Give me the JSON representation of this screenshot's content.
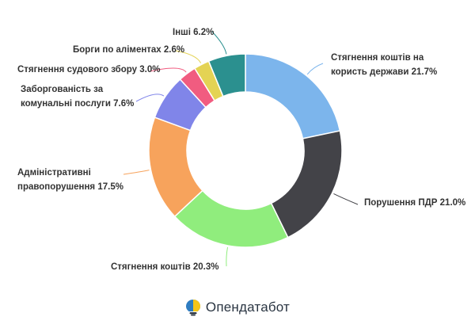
{
  "chart_data": {
    "type": "pie",
    "donut": true,
    "title": "",
    "slices": [
      {
        "label": "Стягнення коштів на користь держави",
        "label_lines": [
          "Стягнення коштів на",
          "користь держави 21.7%"
        ],
        "value": 21.7,
        "color": "#7cb5ec"
      },
      {
        "label": "Порушення ПДР",
        "label_lines": [
          "Порушення ПДР 21.0%"
        ],
        "value": 21.0,
        "color": "#434348"
      },
      {
        "label": "Стягнення коштів",
        "label_lines": [
          "Стягнення коштів 20.3%"
        ],
        "value": 20.3,
        "color": "#90ed7d"
      },
      {
        "label": "Адміністративні правопорушення",
        "label_lines": [
          "Адміністративні",
          "правопорушення 17.5%"
        ],
        "value": 17.5,
        "color": "#f7a35c"
      },
      {
        "label": "Заборгованість за комунальні послуги",
        "label_lines": [
          "Заборгованість за",
          "комунальні послуги 7.6%"
        ],
        "value": 7.6,
        "color": "#8085e9"
      },
      {
        "label": "Стягнення судового збору",
        "label_lines": [
          "Стягнення судового збору 3.0%"
        ],
        "value": 3.0,
        "color": "#f15c80"
      },
      {
        "label": "Борги по аліментах",
        "label_lines": [
          "Борги по аліментах 2.6%"
        ],
        "value": 2.6,
        "color": "#e4d354"
      },
      {
        "label": "Інші",
        "label_lines": [
          "Інші 6.2%"
        ],
        "value": 6.2,
        "color": "#2b908f"
      }
    ]
  },
  "footer": {
    "brand": "Опендатабот",
    "logo_icon": "bulb-logo-icon"
  }
}
